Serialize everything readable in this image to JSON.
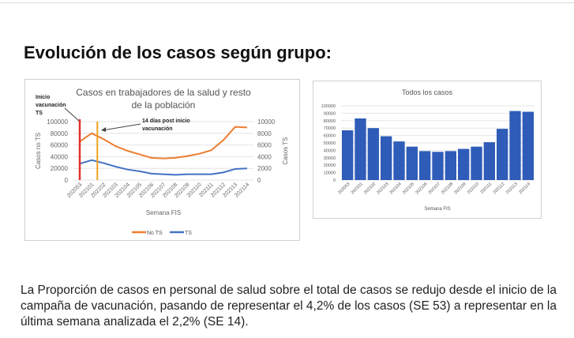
{
  "title": "Evolución de los casos según grupo:",
  "paragraph": "La Proporción de casos en personal de salud sobre el total de casos se redujo desde el inicio de la campaña de vacunación, pasando de representar el 4,2% de los casos (SE 53) a representar en la última semana analizada el 2,2% (SE 14).",
  "chart_data": [
    {
      "type": "line",
      "title": "Casos en trabajadores de la salud y resto de la población",
      "categories": [
        "202053",
        "202101",
        "202102",
        "202103",
        "202104",
        "202105",
        "202106",
        "202107",
        "202108",
        "202109",
        "202110",
        "202111",
        "202112",
        "202113",
        "202114"
      ],
      "series": [
        {
          "name": "No TS",
          "axis": "left",
          "color": "#ED7D31",
          "values": [
            66000,
            80000,
            70000,
            58000,
            50000,
            44000,
            38000,
            37000,
            38000,
            41000,
            45000,
            51000,
            68000,
            91000,
            90000
          ]
        },
        {
          "name": "TS",
          "axis": "right",
          "color": "#4472C4",
          "values": [
            2800,
            3400,
            2900,
            2300,
            1800,
            1500,
            1100,
            1000,
            900,
            1000,
            1000,
            1000,
            1300,
            1900,
            2000
          ]
        }
      ],
      "xlabel": "Semana FIS",
      "ylabel": "Casos no TS",
      "y2label": "Casos TS",
      "ylim": [
        0,
        100000
      ],
      "y2lim": [
        0,
        10000
      ],
      "yticks": [
        "0",
        "20000",
        "40000",
        "60000",
        "80000",
        "100000"
      ],
      "y2ticks": [
        "0",
        "2000",
        "4000",
        "6000",
        "8000",
        "10000"
      ],
      "legend": "bottom",
      "annotations": [
        {
          "text_lines": [
            "Inicio",
            "vacunación",
            "TS"
          ],
          "category": "202053",
          "color": "#E0302A"
        },
        {
          "text_lines": [
            "14 días post inicio",
            "vacunación"
          ],
          "category": "202102",
          "color": "#F0A020"
        }
      ]
    },
    {
      "type": "bar",
      "title": "Todos los casos",
      "categories": [
        "202053",
        "202101",
        "202102",
        "202103",
        "202104",
        "202105",
        "202106",
        "202107",
        "202108",
        "202109",
        "202110",
        "202111",
        "202112",
        "202113",
        "202114"
      ],
      "values": [
        67000,
        83000,
        70000,
        59000,
        52000,
        45000,
        39000,
        38000,
        39000,
        42000,
        45000,
        51000,
        69000,
        93000,
        92000
      ],
      "color": "#2E5CB8",
      "xlabel": "Semana FIS",
      "ylim": [
        0,
        100000
      ],
      "yticks": [
        "0",
        "10000",
        "20000",
        "30000",
        "40000",
        "50000",
        "60000",
        "70000",
        "80000",
        "90000",
        "100000"
      ]
    }
  ]
}
